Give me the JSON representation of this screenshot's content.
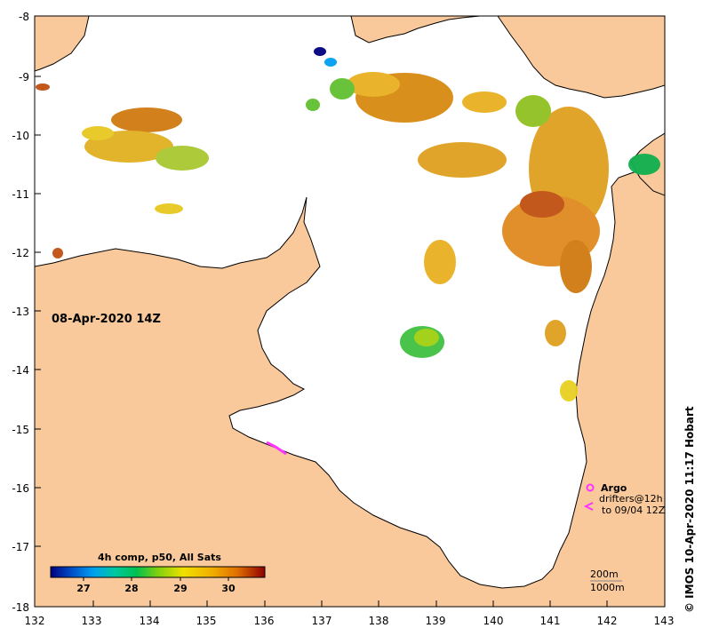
{
  "map": {
    "date_label": "08-Apr-2020 14Z",
    "credit": "© IMOS 10-Apr-2020 11:17 Hobart",
    "colors": {
      "land": "#f9c99b",
      "ocean": "#ffffff",
      "coast": "#000000",
      "argo": "#ff33ff"
    },
    "lon_ticks": [
      "132",
      "133",
      "134",
      "135",
      "136",
      "137",
      "138",
      "139",
      "140",
      "141",
      "142",
      "143"
    ],
    "lat_ticks": [
      "-8",
      "-9",
      "-10",
      "-11",
      "-12",
      "-13",
      "-14",
      "-15",
      "-16",
      "-17",
      "-18"
    ],
    "colorbar": {
      "title": "4h comp, p50, All Sats",
      "ticks": [
        "27",
        "28",
        "29",
        "30"
      ],
      "colors": [
        "#000080",
        "#0050c8",
        "#00a0f0",
        "#00c8a0",
        "#00c050",
        "#40c020",
        "#a0d010",
        "#f0e000",
        "#f0b000",
        "#e07000",
        "#c03000",
        "#900000"
      ]
    },
    "legend": {
      "argo_label": "Argo",
      "drifters_line1": "drifters@12h",
      "drifters_line2": "to 09/04 12Z",
      "depth_200": "200m",
      "depth_1000": "1000m"
    }
  }
}
